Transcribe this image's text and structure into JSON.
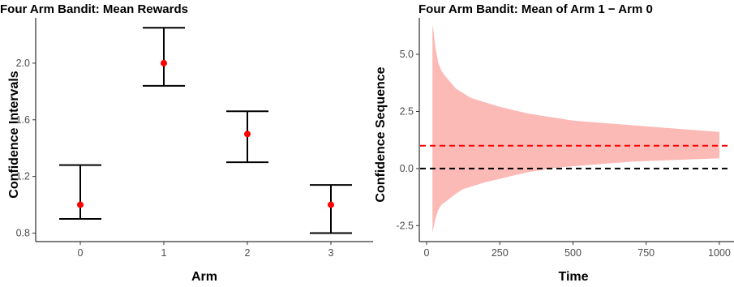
{
  "chart_data": [
    {
      "type": "errorbar",
      "title": "Four Arm Bandit: Mean Rewards",
      "xlabel": "Arm",
      "ylabel": "Confidence Intervals",
      "categories": [
        "0",
        "1",
        "2",
        "3"
      ],
      "values": [
        1.0,
        2.0,
        1.5,
        1.0
      ],
      "lower": [
        0.9,
        1.84,
        1.3,
        0.8
      ],
      "upper": [
        1.28,
        2.25,
        1.66,
        1.14
      ],
      "ylim": [
        0.74,
        2.32
      ],
      "yticks": [
        0.8,
        1.2,
        1.6,
        2.0
      ],
      "ytick_labels": [
        "0.8",
        "1.2",
        "1.6",
        "2.0"
      ],
      "point_color": "#ff0000",
      "grid": false
    },
    {
      "type": "area",
      "title": "Four Arm Bandit: Mean of Arm 1 − Arm 0",
      "xlabel": "Time",
      "ylabel": "Confidence Sequence",
      "xlim": [
        -25,
        1050
      ],
      "ylim": [
        -3.2,
        6.6
      ],
      "xticks": [
        0,
        250,
        500,
        750,
        1000
      ],
      "xtick_labels": [
        "0",
        "250",
        "500",
        "750",
        "1000"
      ],
      "yticks": [
        -2.5,
        0.0,
        2.5,
        5.0
      ],
      "ytick_labels": [
        "-2.5",
        "0.0",
        "2.5",
        "5.0"
      ],
      "band": {
        "x": [
          20,
          25,
          30,
          40,
          50,
          60,
          80,
          100,
          125,
          150,
          200,
          250,
          300,
          350,
          400,
          450,
          500,
          600,
          700,
          800,
          900,
          1000
        ],
        "upper": [
          6.3,
          5.9,
          5.3,
          4.6,
          4.3,
          4.1,
          3.8,
          3.5,
          3.3,
          3.1,
          2.9,
          2.7,
          2.55,
          2.4,
          2.3,
          2.2,
          2.1,
          2.0,
          1.9,
          1.8,
          1.7,
          1.6
        ],
        "lower": [
          -2.8,
          -2.5,
          -2.2,
          -1.8,
          -1.6,
          -1.5,
          -1.3,
          -1.1,
          -0.9,
          -0.8,
          -0.6,
          -0.45,
          -0.3,
          -0.15,
          -0.05,
          0.05,
          0.1,
          0.2,
          0.3,
          0.35,
          0.4,
          0.45
        ]
      },
      "band_color": "#f8766d",
      "reference_lines": [
        {
          "y": 1.0,
          "color": "#ff0000",
          "style": "dashed"
        },
        {
          "y": 0.0,
          "color": "#000000",
          "style": "dashed"
        }
      ],
      "grid": false
    }
  ]
}
